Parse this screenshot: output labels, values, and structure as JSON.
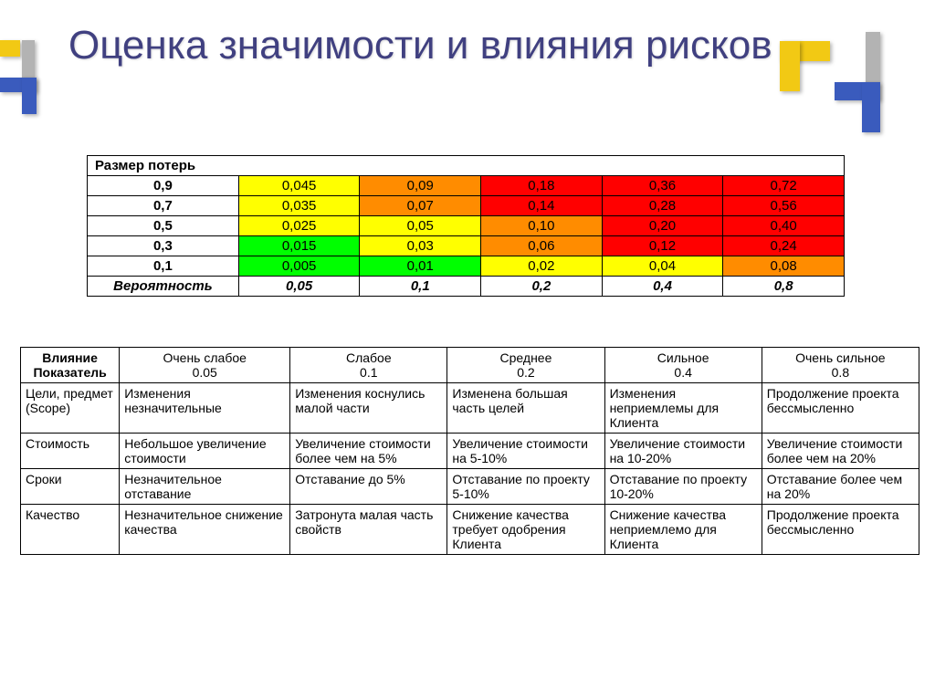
{
  "title": "Оценка значимости и влияния рисков",
  "matrix": {
    "header": "Размер потерь",
    "prob_label": "Вероятность",
    "row_labels": [
      "0,9",
      "0,7",
      "0,5",
      "0,3",
      "0,1"
    ],
    "col_labels": [
      "0,05",
      "0,1",
      "0,2",
      "0,4",
      "0,8"
    ],
    "cells": [
      [
        {
          "v": "0,045",
          "c": "#ffff00"
        },
        {
          "v": "0,09",
          "c": "#ff8c00"
        },
        {
          "v": "0,18",
          "c": "#ff0000"
        },
        {
          "v": "0,36",
          "c": "#ff0000"
        },
        {
          "v": "0,72",
          "c": "#ff0000"
        }
      ],
      [
        {
          "v": "0,035",
          "c": "#ffff00"
        },
        {
          "v": "0,07",
          "c": "#ff8c00"
        },
        {
          "v": "0,14",
          "c": "#ff0000"
        },
        {
          "v": "0,28",
          "c": "#ff0000"
        },
        {
          "v": "0,56",
          "c": "#ff0000"
        }
      ],
      [
        {
          "v": "0,025",
          "c": "#ffff00"
        },
        {
          "v": "0,05",
          "c": "#ffff00"
        },
        {
          "v": "0,10",
          "c": "#ff8c00"
        },
        {
          "v": "0,20",
          "c": "#ff0000"
        },
        {
          "v": "0,40",
          "c": "#ff0000"
        }
      ],
      [
        {
          "v": "0,015",
          "c": "#00ff00"
        },
        {
          "v": "0,03",
          "c": "#ffff00"
        },
        {
          "v": "0,06",
          "c": "#ff8c00"
        },
        {
          "v": "0,12",
          "c": "#ff0000"
        },
        {
          "v": "0,24",
          "c": "#ff0000"
        }
      ],
      [
        {
          "v": "0,005",
          "c": "#00ff00"
        },
        {
          "v": "0,01",
          "c": "#00ff00"
        },
        {
          "v": "0,02",
          "c": "#ffff00"
        },
        {
          "v": "0,04",
          "c": "#ffff00"
        },
        {
          "v": "0,08",
          "c": "#ff8c00"
        }
      ]
    ]
  },
  "impact": {
    "corner_top": "Влияние",
    "corner_bottom": "Показатель",
    "levels": [
      {
        "name": "Очень слабое",
        "val": "0.05"
      },
      {
        "name": "Слабое",
        "val": "0.1"
      },
      {
        "name": "Среднее",
        "val": "0.2"
      },
      {
        "name": "Сильное",
        "val": "0.4"
      },
      {
        "name": "Очень сильное",
        "val": "0.8"
      }
    ],
    "rows": [
      {
        "label": "Цели, предмет (Scope)",
        "cells": [
          "Изменения незначительные",
          "Изменения коснулись малой части",
          "Изменена большая часть целей",
          "Изменения неприемлемы для Клиента",
          "Продолжение проекта бессмысленно"
        ]
      },
      {
        "label": "Стоимость",
        "cells": [
          "Небольшое увеличение стоимости",
          "Увеличение стоимости более чем на 5%",
          "Увеличение стоимости на 5-10%",
          "Увеличение стоимости на 10-20%",
          "Увеличение стоимости более чем  на 20%"
        ]
      },
      {
        "label": "Сроки",
        "cells": [
          "Незначительное отставание",
          "Отставание до 5%",
          "Отставание по проекту  5-10%",
          "Отставание по проекту 10-20%",
          "Отставание более чем на 20%"
        ]
      },
      {
        "label": "Качество",
        "cells": [
          "Незначительное снижение качества",
          "Затронута малая часть свойств",
          "Снижение качества требует одобрения Клиента",
          "Снижение качества неприемлемо для Клиента",
          "Продолжение проекта бессмысленно"
        ]
      }
    ]
  }
}
